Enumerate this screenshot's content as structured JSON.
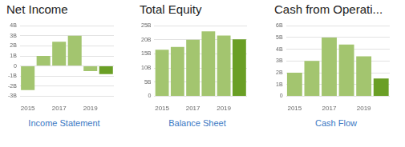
{
  "chart_data": [
    {
      "type": "bar",
      "title": "Net Income",
      "annotations": [
        "Income Statement"
      ],
      "categories": [
        "2015",
        null,
        "2017",
        null,
        "2019",
        null
      ],
      "values": [
        -2.4,
        1.0,
        2.4,
        3.0,
        -0.5,
        -0.8
      ],
      "colors": [
        "#a3c56f",
        "#a3c56f",
        "#a3c56f",
        "#a3c56f",
        "#a3c56f",
        "#6a9f25"
      ],
      "ylim": [
        -3,
        4
      ],
      "yticks": [
        {
          "value": -3,
          "label": "-3B"
        },
        {
          "value": -2,
          "label": "-2B"
        },
        {
          "value": -1,
          "label": "-1B"
        },
        0,
        {
          "value": 1,
          "label": "1B"
        },
        {
          "value": 2,
          "label": "2B"
        },
        {
          "value": 3,
          "label": "3B"
        },
        {
          "value": 4,
          "label": "4B"
        }
      ],
      "grid": true
    },
    {
      "type": "bar",
      "title": "Total Equity",
      "annotations": [
        "Balance Sheet"
      ],
      "categories": [
        "2015",
        null,
        "2017",
        null,
        "2019",
        null
      ],
      "values": [
        16.5,
        17.5,
        20.0,
        23.0,
        21.5,
        20.2
      ],
      "colors": [
        "#a3c56f",
        "#a3c56f",
        "#a3c56f",
        "#a3c56f",
        "#a3c56f",
        "#6a9f25"
      ],
      "ylim": [
        0,
        25
      ],
      "yticks": [
        0,
        {
          "value": 5,
          "label": "5B"
        },
        {
          "value": 10,
          "label": "10B"
        },
        {
          "value": 15,
          "label": "15B"
        },
        {
          "value": 20,
          "label": "20B"
        },
        {
          "value": 25,
          "label": "25B"
        }
      ],
      "grid": true
    },
    {
      "type": "bar",
      "title": "Cash from Operati...",
      "annotations": [
        "Cash Flow"
      ],
      "categories": [
        "2015",
        null,
        "2017",
        null,
        "2019",
        null
      ],
      "values": [
        2.0,
        3.0,
        5.0,
        4.4,
        3.4,
        1.5
      ],
      "colors": [
        "#a3c56f",
        "#a3c56f",
        "#a3c56f",
        "#a3c56f",
        "#a3c56f",
        "#6a9f25"
      ],
      "ylim": [
        0,
        6
      ],
      "yticks": [
        0,
        {
          "value": 1,
          "label": "1B"
        },
        {
          "value": 2,
          "label": "2B"
        },
        {
          "value": 3,
          "label": "3B"
        },
        {
          "value": 4,
          "label": "4B"
        },
        {
          "value": 5,
          "label": "5B"
        },
        {
          "value": 6,
          "label": "6B"
        }
      ],
      "grid": true
    }
  ]
}
